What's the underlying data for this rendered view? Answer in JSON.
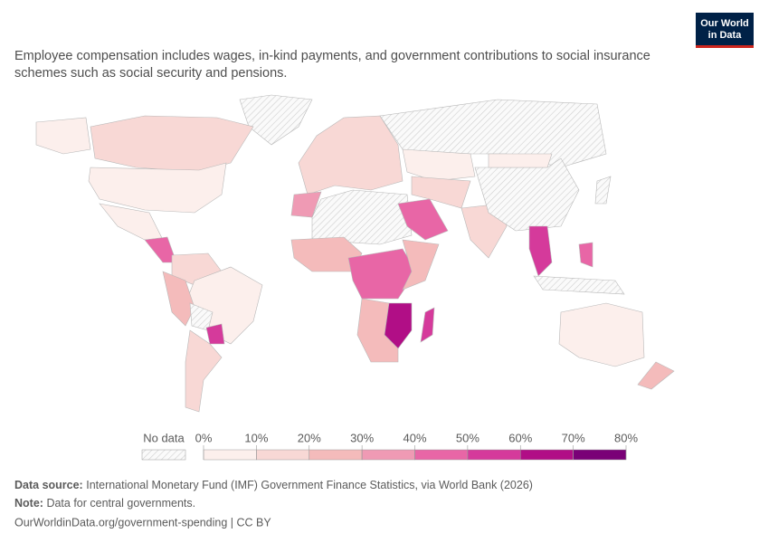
{
  "logo": {
    "lines": [
      "Our World",
      "in Data"
    ]
  },
  "subtitle": [
    "Employee compensation includes wages, in-kind payments, and government contributions to social insurance",
    "schemes such as social security and pensions."
  ],
  "chart_data": {
    "type": "choropleth",
    "regions": [
      null,
      12,
      6,
      6,
      8,
      45,
      10,
      8,
      22,
      null,
      55,
      14,
      18,
      null,
      8,
      null,
      35,
      25,
      40,
      25,
      28,
      62,
      50,
      45,
      15,
      12,
      null,
      5,
      55,
      40,
      null,
      5,
      25,
      null
    ],
    "legend": {
      "no_data_label": "No data",
      "ticks": [
        {
          "value": 0,
          "label": "0%"
        },
        {
          "value": 10,
          "label": "10%"
        },
        {
          "value": 20,
          "label": "20%"
        },
        {
          "value": 30,
          "label": "30%"
        },
        {
          "value": 40,
          "label": "40%"
        },
        {
          "value": 50,
          "label": "50%"
        },
        {
          "value": 60,
          "label": "60%"
        },
        {
          "value": 70,
          "label": "70%"
        },
        {
          "value": 80,
          "label": "80%"
        }
      ],
      "colors": [
        "#fcefec",
        "#f8d8d5",
        "#f4bbbb",
        "#ef9ab4",
        "#e866a6",
        "#d53a9b",
        "#b10e86",
        "#7a0177"
      ]
    }
  },
  "footer": {
    "source_label": "Data source:",
    "source_text": "International Monetary Fund (IMF) Government Finance Statistics, via World Bank (2026)",
    "note_label": "Note:",
    "note_text": "Data for central governments.",
    "url": "OurWorldinData.org/government-spending | CC BY"
  }
}
